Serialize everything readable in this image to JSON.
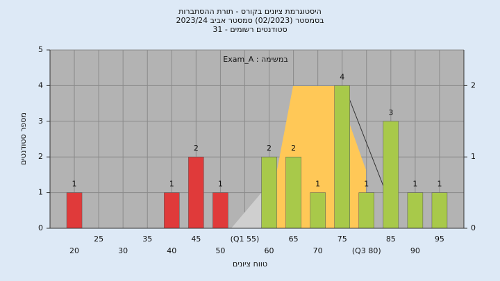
{
  "chart_data": {
    "type": "bar",
    "title_lines": [
      "היסטוגרמת ציונים בקורס - תורת ההסתברות",
      "בסמסטר  (02/2023)  סמסטר אביב 2023/24",
      "31 - סטודנטים רשומים"
    ],
    "annotation": "Exam_A : במשימה",
    "y_label": "מספר סטודנטים",
    "x_label": "טווח ציונים",
    "categories": [
      "20",
      "25",
      "30",
      "35",
      "40",
      "45",
      "50",
      "(Q1 55)",
      "60",
      "65",
      "70",
      "75",
      "(Q3 80)",
      "85",
      "90",
      "95"
    ],
    "values": [
      1,
      0,
      0,
      0,
      1,
      2,
      1,
      0,
      2,
      2,
      1,
      4,
      1,
      3,
      1,
      1
    ],
    "colors": [
      "#e03a3a",
      "#e03a3a",
      "#e03a3a",
      "#e03a3a",
      "#e03a3a",
      "#e03a3a",
      "#e03a3a",
      "#a8c94a",
      "#a8c94a",
      "#a8c94a",
      "#a8c94a",
      "#a8c94a",
      "#a8c94a",
      "#a8c94a",
      "#a8c94a",
      "#a8c94a"
    ],
    "ylim": [
      0,
      5
    ],
    "yticks": [
      0,
      1,
      2,
      3,
      4,
      5
    ],
    "y2lim": [
      0,
      2.5
    ],
    "y2ticks": [
      0,
      1,
      2
    ],
    "grid": true
  }
}
